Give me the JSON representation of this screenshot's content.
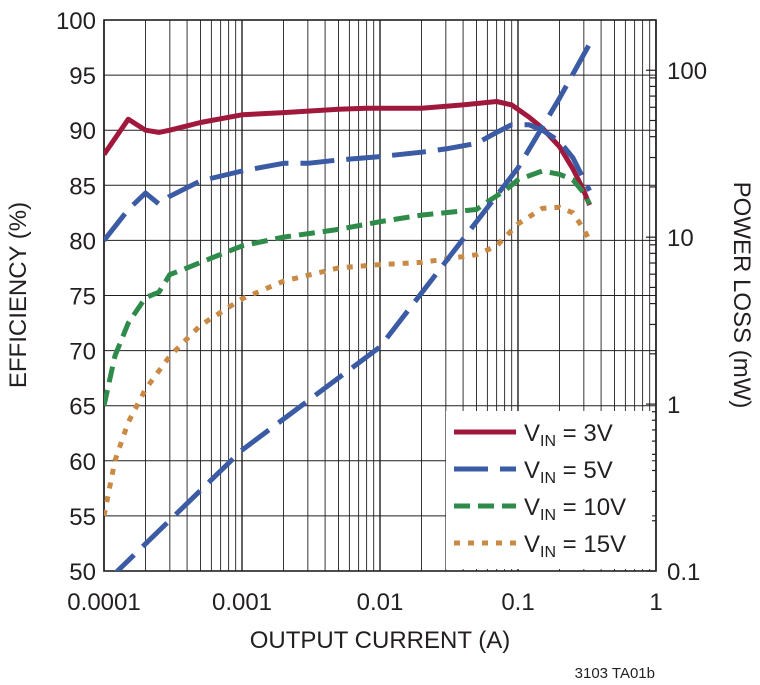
{
  "chart_data": {
    "type": "line",
    "xlabel": "OUTPUT CURRENT (A)",
    "ylabel": "EFFICIENCY (%)",
    "y2label": "POWER LOSS (mW)",
    "footnote": "3103 TA01b",
    "x_scale": "log",
    "xlim": [
      0.0001,
      1
    ],
    "ylim": [
      50,
      100
    ],
    "y2_scale": "log",
    "y2lim": [
      0.1,
      200
    ],
    "grid": true,
    "legend_position": "bottom-right",
    "x_ticks": [
      {
        "value": 0.0001,
        "label": "0.0001"
      },
      {
        "value": 0.001,
        "label": "0.001"
      },
      {
        "value": 0.01,
        "label": "0.01"
      },
      {
        "value": 0.1,
        "label": "0.1"
      },
      {
        "value": 1,
        "label": "1"
      }
    ],
    "y_ticks": [
      {
        "value": 50,
        "label": "50"
      },
      {
        "value": 55,
        "label": "55"
      },
      {
        "value": 60,
        "label": "60"
      },
      {
        "value": 65,
        "label": "65"
      },
      {
        "value": 70,
        "label": "70"
      },
      {
        "value": 75,
        "label": "75"
      },
      {
        "value": 80,
        "label": "80"
      },
      {
        "value": 85,
        "label": "85"
      },
      {
        "value": 90,
        "label": "90"
      },
      {
        "value": 95,
        "label": "95"
      },
      {
        "value": 100,
        "label": "100"
      }
    ],
    "y2_ticks": [
      {
        "value": 0.1,
        "label": "0.1"
      },
      {
        "value": 1,
        "label": "1"
      },
      {
        "value": 10,
        "label": "10"
      },
      {
        "value": 100,
        "label": "100"
      }
    ],
    "series": [
      {
        "name_main": "V",
        "name_sub": "IN",
        "name_rest": " = 3V",
        "axis": "left",
        "color": "#a0193c",
        "dash": "",
        "points": [
          [
            0.0001,
            87.8
          ],
          [
            0.00015,
            91.0
          ],
          [
            0.0002,
            90.0
          ],
          [
            0.00025,
            89.8
          ],
          [
            0.0003,
            90.0
          ],
          [
            0.0005,
            90.7
          ],
          [
            0.001,
            91.4
          ],
          [
            0.002,
            91.6
          ],
          [
            0.005,
            91.9
          ],
          [
            0.008,
            92.0
          ],
          [
            0.01,
            92.0
          ],
          [
            0.02,
            92.0
          ],
          [
            0.04,
            92.3
          ],
          [
            0.07,
            92.6
          ],
          [
            0.09,
            92.3
          ],
          [
            0.12,
            91.2
          ],
          [
            0.15,
            90.2
          ],
          [
            0.2,
            88.5
          ],
          [
            0.25,
            86.5
          ],
          [
            0.3,
            84.5
          ],
          [
            0.33,
            83.2
          ]
        ]
      },
      {
        "name_main": "V",
        "name_sub": "IN",
        "name_rest": " = 5V",
        "axis": "left",
        "color": "#3b5ba5",
        "dash": "34 12",
        "points": [
          [
            0.0001,
            80.0
          ],
          [
            0.00015,
            82.8
          ],
          [
            0.0002,
            84.3
          ],
          [
            0.00025,
            83.3
          ],
          [
            0.0003,
            84.0
          ],
          [
            0.0005,
            85.4
          ],
          [
            0.001,
            86.3
          ],
          [
            0.002,
            87.0
          ],
          [
            0.003,
            87.0
          ],
          [
            0.005,
            87.3
          ],
          [
            0.01,
            87.6
          ],
          [
            0.02,
            88.0
          ],
          [
            0.03,
            88.3
          ],
          [
            0.05,
            88.8
          ],
          [
            0.07,
            89.8
          ],
          [
            0.09,
            90.5
          ],
          [
            0.12,
            90.5
          ],
          [
            0.15,
            90.0
          ],
          [
            0.2,
            89.0
          ],
          [
            0.25,
            87.5
          ],
          [
            0.33,
            84.5
          ]
        ]
      },
      {
        "name_main": "V",
        "name_sub": "IN",
        "name_rest": " = 10V",
        "axis": "left",
        "color": "#2e8b4a",
        "dash": "16 8",
        "points": [
          [
            0.0001,
            65.0
          ],
          [
            0.00012,
            69.5
          ],
          [
            0.00015,
            72.5
          ],
          [
            0.0002,
            74.8
          ],
          [
            0.00025,
            75.3
          ],
          [
            0.0003,
            76.9
          ],
          [
            0.0004,
            77.5
          ],
          [
            0.0005,
            78.0
          ],
          [
            0.001,
            79.5
          ],
          [
            0.002,
            80.3
          ],
          [
            0.005,
            81.0
          ],
          [
            0.01,
            81.7
          ],
          [
            0.02,
            82.3
          ],
          [
            0.05,
            82.8
          ],
          [
            0.06,
            83.5
          ],
          [
            0.08,
            84.5
          ],
          [
            0.1,
            85.5
          ],
          [
            0.15,
            86.3
          ],
          [
            0.2,
            86.0
          ],
          [
            0.25,
            85.5
          ],
          [
            0.3,
            84.3
          ],
          [
            0.33,
            83.3
          ]
        ]
      },
      {
        "name_main": "V",
        "name_sub": "IN",
        "name_rest": " = 15V",
        "axis": "left",
        "color": "#c98a45",
        "dash": "6 8",
        "points": [
          [
            0.0001,
            55.0
          ],
          [
            0.00012,
            60.0
          ],
          [
            0.00015,
            63.5
          ],
          [
            0.0002,
            66.5
          ],
          [
            0.0003,
            69.5
          ],
          [
            0.0005,
            72.3
          ],
          [
            0.001,
            74.7
          ],
          [
            0.002,
            76.3
          ],
          [
            0.005,
            77.5
          ],
          [
            0.01,
            77.8
          ],
          [
            0.02,
            78.0
          ],
          [
            0.05,
            78.7
          ],
          [
            0.07,
            79.5
          ],
          [
            0.1,
            81.5
          ],
          [
            0.15,
            82.9
          ],
          [
            0.2,
            83.0
          ],
          [
            0.25,
            82.5
          ],
          [
            0.3,
            81.0
          ],
          [
            0.33,
            80.0
          ]
        ]
      },
      {
        "name_main": "",
        "name_sub": "",
        "name_rest": "",
        "axis": "right",
        "color": "#3b5ba5",
        "dash": "34 12",
        "points": [
          [
            0.00011,
            0.09
          ],
          [
            0.001,
            0.53
          ],
          [
            0.01,
            2.2
          ],
          [
            0.1,
            26
          ],
          [
            0.2,
            68
          ],
          [
            0.34,
            150
          ]
        ]
      }
    ]
  }
}
